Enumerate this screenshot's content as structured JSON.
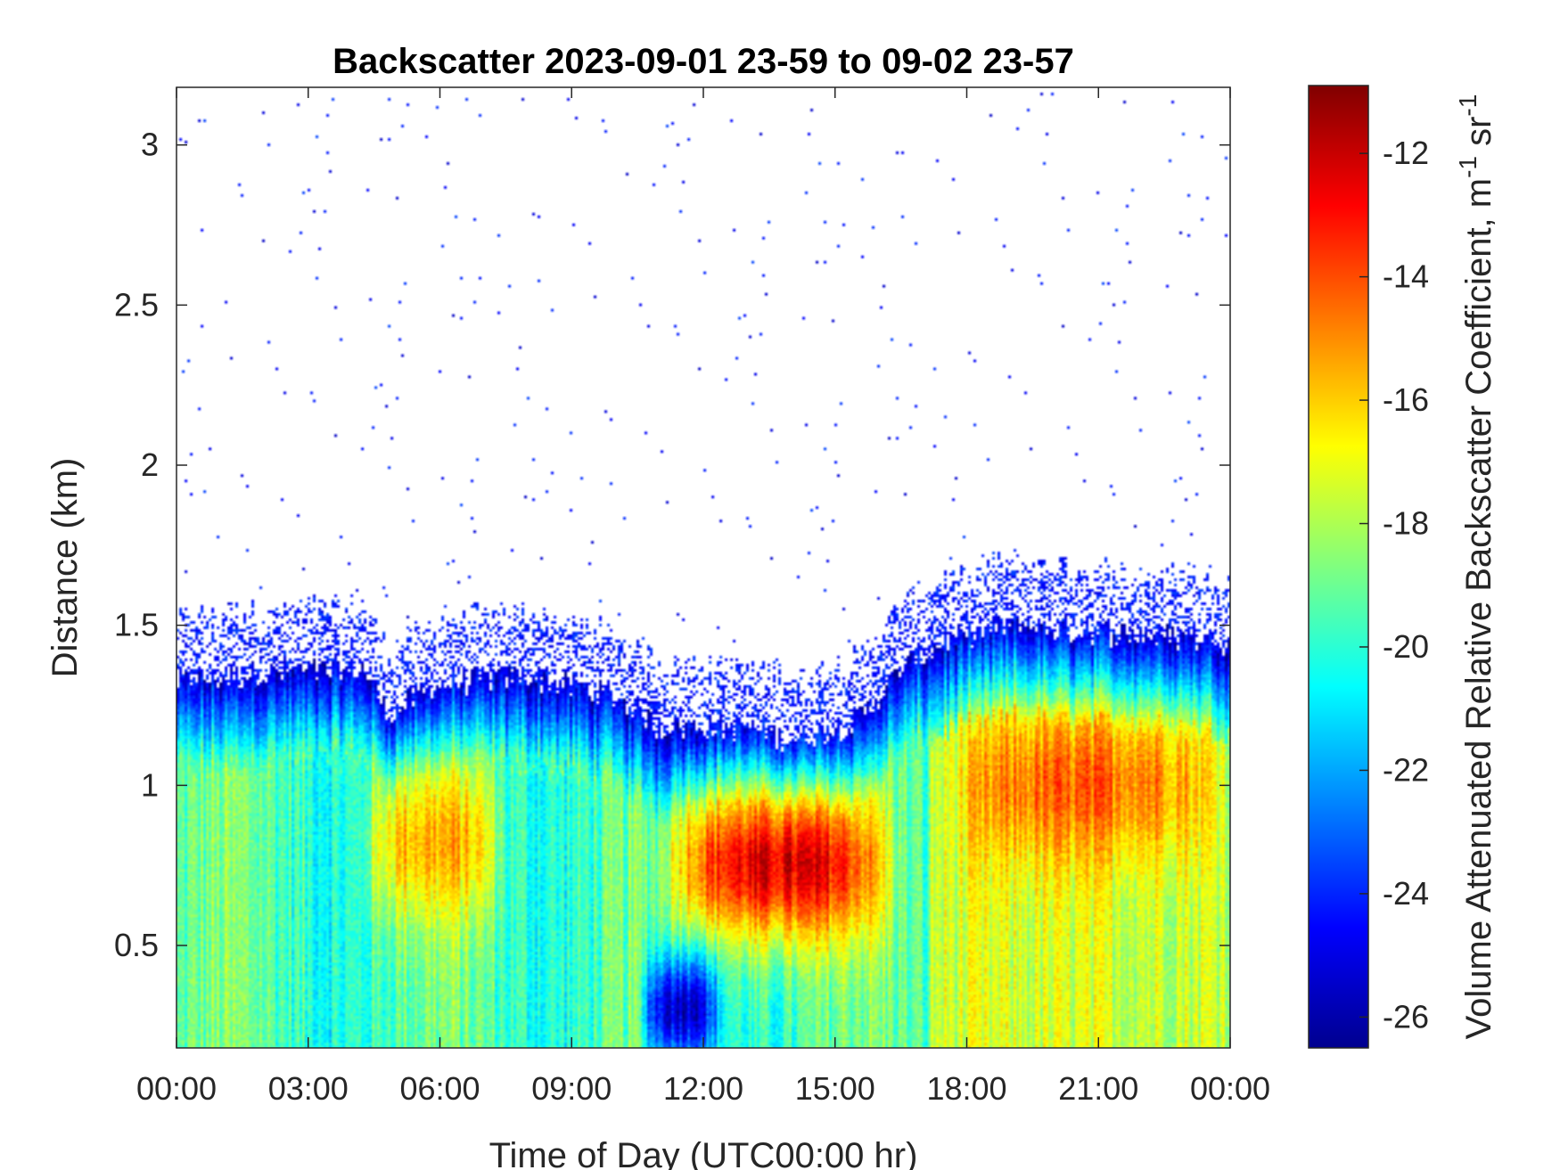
{
  "chart_data": {
    "type": "heatmap",
    "title": "Backscatter 2023-09-01 23-59 to 09-02 23-57",
    "xlabel": "Time of Day (UTC00:00 hr)",
    "ylabel": "Distance (km)",
    "x_unit": "hours",
    "xlim": [
      0,
      24
    ],
    "ylim": [
      0.18,
      3.18
    ],
    "x_ticks": [
      0,
      3,
      6,
      9,
      12,
      15,
      18,
      21,
      24
    ],
    "x_tick_labels": [
      "00:00",
      "03:00",
      "06:00",
      "09:00",
      "12:00",
      "15:00",
      "18:00",
      "21:00",
      "00:00"
    ],
    "y_ticks": [
      0.5,
      1,
      1.5,
      2,
      2.5,
      3
    ],
    "y_tick_labels": [
      "0.5",
      "1",
      "1.5",
      "2",
      "2.5",
      "3"
    ],
    "colorbar": {
      "label": "Volume Attenuated Relative Backscatter Coefficient, m",
      "label_sup1": "-1",
      "label_mid": " sr",
      "label_sup2": "-1",
      "clim": [
        -26.5,
        -10.9
      ],
      "ticks": [
        -26,
        -24,
        -22,
        -20,
        -18,
        -16,
        -14,
        -12
      ],
      "tick_labels": [
        "-26",
        "-24",
        "-22",
        "-20",
        "-18",
        "-16",
        "-14",
        "-12"
      ],
      "colormap": "jet"
    },
    "boundary_layer_top_km": [
      {
        "x": 0,
        "y": 1.32
      },
      {
        "x": 2,
        "y": 1.35
      },
      {
        "x": 4.3,
        "y": 1.36
      },
      {
        "x": 4.8,
        "y": 1.22
      },
      {
        "x": 6,
        "y": 1.32
      },
      {
        "x": 8,
        "y": 1.34
      },
      {
        "x": 10,
        "y": 1.28
      },
      {
        "x": 11,
        "y": 1.18
      },
      {
        "x": 13,
        "y": 1.18
      },
      {
        "x": 14,
        "y": 1.14
      },
      {
        "x": 15.5,
        "y": 1.2
      },
      {
        "x": 16.5,
        "y": 1.36
      },
      {
        "x": 17.5,
        "y": 1.45
      },
      {
        "x": 19,
        "y": 1.5
      },
      {
        "x": 21,
        "y": 1.48
      },
      {
        "x": 24,
        "y": 1.45
      }
    ],
    "features": [
      {
        "x_range": [
          4.2,
          7.5
        ],
        "y_center_km": 0.82,
        "value": -15.5
      },
      {
        "x_range": [
          11,
          16.5
        ],
        "y_center_km": 0.75,
        "value": -12.5
      },
      {
        "x_range": [
          17.5,
          24
        ],
        "y_center_km": 1.0,
        "value": -14.5
      },
      {
        "x_range": [
          10.5,
          12.5
        ],
        "y_center_km": 0.3,
        "value": -25
      }
    ]
  }
}
